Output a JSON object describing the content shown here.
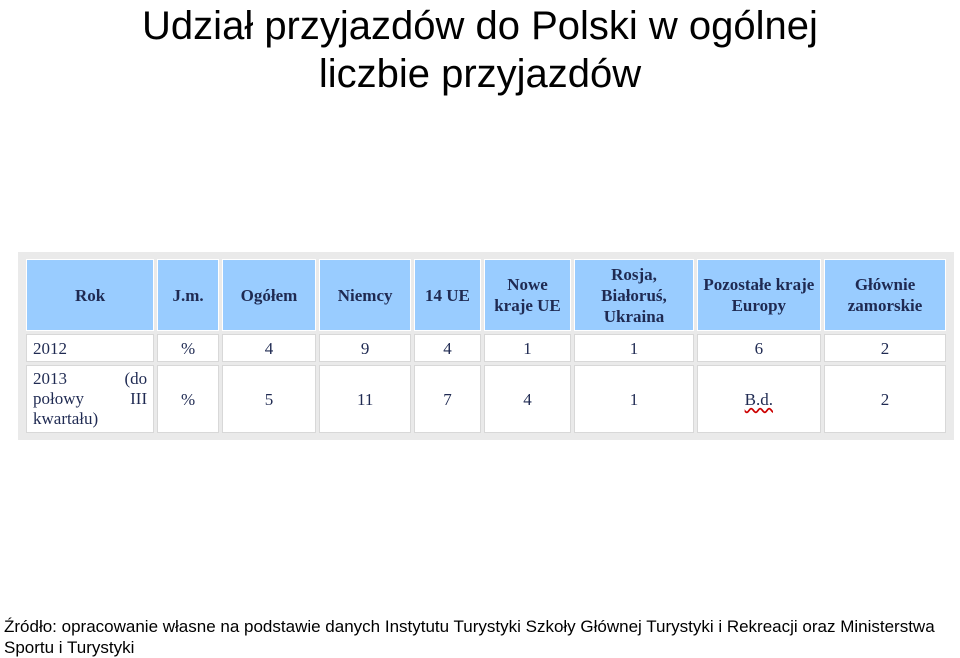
{
  "title": {
    "line1": "Udział przyjazdów do Polski w ogólnej",
    "line2": "liczbie przyjazdów"
  },
  "table": {
    "headers": [
      "Rok",
      "J.m.",
      "Ogółem",
      "Niemcy",
      "14 UE",
      "Nowe kraje UE",
      "Rosja, Białoruś, Ukraina",
      "Pozostałe kraje Europy",
      "Głównie zamorskie"
    ],
    "rows": [
      [
        "2012",
        "%",
        "4",
        "9",
        "4",
        "1",
        "1",
        "6",
        "2"
      ],
      [
        "2013 (do połowy III kwartału)",
        "%",
        "5",
        "11",
        "7",
        "4",
        "1",
        "B.d.",
        "2"
      ]
    ]
  },
  "source": "Źródło: opracowanie własne na podstawie danych Instytutu Turystyki Szkoły Głównej Turystyki i Rekreacji oraz Ministerstwa Sportu i Turystyki"
}
